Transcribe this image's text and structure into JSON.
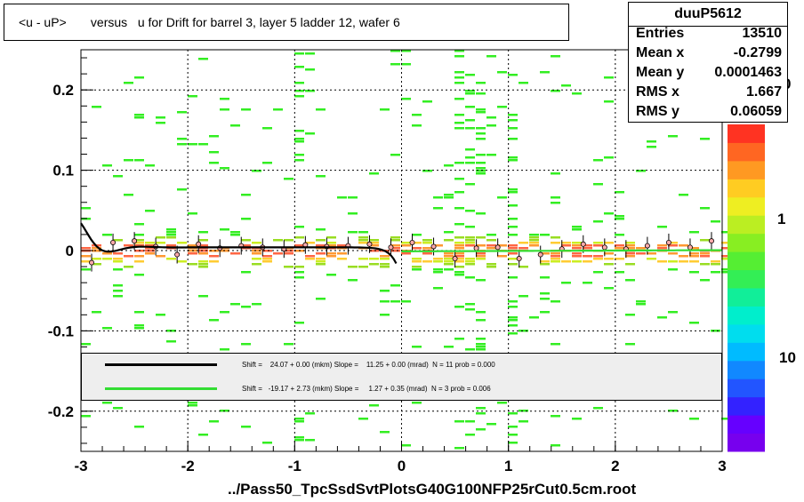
{
  "title": "<u - uP>       versus   u for Drift for barrel 3, layer 5 ladder 12, wafer 6",
  "stats": {
    "name": "duuP5612",
    "rows": [
      {
        "key": "Entries",
        "value": "13510"
      },
      {
        "key": "Mean x",
        "value": "-0.2799"
      },
      {
        "key": "Mean y",
        "value": "0.0001463"
      },
      {
        "key": "RMS x",
        "value": "1.667"
      },
      {
        "key": "RMS y",
        "value": "0.06059"
      }
    ]
  },
  "legend": [
    {
      "color": "#000000",
      "text": "Shift =    24.07 + 0.00 (mkm) Slope =    11.25 + 0.00 (mrad)  N = 11 prob = 0.000"
    },
    {
      "color": "#33dd33",
      "text": "Shift =   -19.17 + 2.73 (mkm) Slope =     1.27 + 0.35 (mrad)  N = 3 prob = 0.006"
    }
  ],
  "footer": "../Pass50_TpcSsdSvtPlotsG40G100NFP25rCut0.5cm.root",
  "palette_labels": [
    "0",
    "1",
    "10"
  ],
  "chart_data": {
    "type": "heatmap",
    "title": "<u - uP>       versus   u for Drift for barrel 3, layer 5 ladder 12, wafer 6",
    "xlim": [
      -3,
      3
    ],
    "ylim": [
      -0.25,
      0.25
    ],
    "xticks": [
      -3,
      -2,
      -1,
      0,
      1,
      2,
      3
    ],
    "yticks": [
      -0.2,
      -0.1,
      0,
      0.1,
      0.2
    ],
    "grid": true,
    "colorbar": "right, log scale",
    "profile_points": {
      "x": [
        -2.9,
        -2.7,
        -2.5,
        -2.3,
        -2.1,
        -1.9,
        -1.7,
        -1.5,
        -1.3,
        -1.1,
        -0.9,
        -0.7,
        -0.5,
        -0.3,
        -0.1,
        0.1,
        0.3,
        0.5,
        0.7,
        0.9,
        1.1,
        1.3,
        1.5,
        1.7,
        1.9,
        2.1,
        2.3,
        2.5,
        2.7,
        2.9
      ],
      "y": [
        -0.015,
        0.01,
        0.012,
        0.005,
        -0.005,
        0.008,
        0.003,
        0.006,
        0.004,
        0.002,
        0.007,
        0.005,
        0.006,
        0.008,
        0.004,
        0.01,
        0.005,
        -0.01,
        0.003,
        0.004,
        -0.01,
        -0.005,
        0.002,
        0.008,
        0.004,
        0.002,
        0.006,
        0.01,
        0.004,
        0.012
      ]
    },
    "fits": [
      {
        "color": "#000000",
        "shift_mkm": 24.07,
        "slope_mrad": 11.25,
        "x_range": [
          -3,
          -0.05
        ]
      },
      {
        "color": "#33dd33",
        "shift_mkm": -19.17,
        "slope_mrad": 1.27,
        "x_range": [
          0,
          3
        ]
      }
    ]
  }
}
